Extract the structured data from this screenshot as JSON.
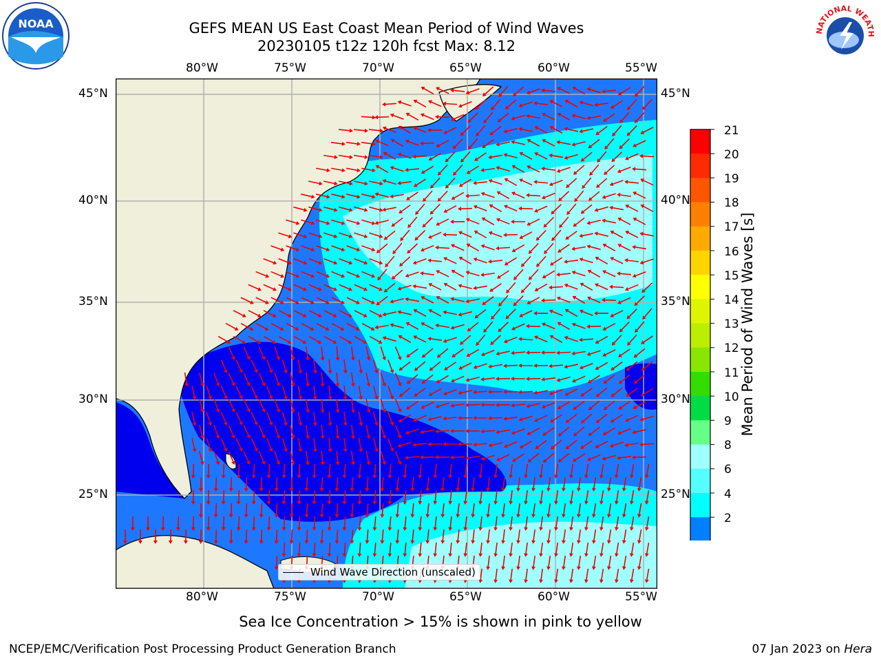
{
  "title": {
    "line1": "GEFS MEAN US East Coast Mean Period of Wind Waves",
    "line2": "20230105 t12z 120h fcst   Max: 8.12"
  },
  "logos": {
    "left_text": "NOAA",
    "right_text": "NATIONAL WEATHER SERVICE"
  },
  "map": {
    "lon_labels": [
      "80°W",
      "75°W",
      "70°W",
      "65°W",
      "60°W",
      "55°W"
    ],
    "lat_labels": [
      "45°N",
      "40°N",
      "35°N",
      "30°N",
      "25°N"
    ],
    "legend_label": "Wind Wave Direction (unscaled)",
    "colors": {
      "land": "#efefdb",
      "water_deep_blue": "#0000ee",
      "blue": "#1e78ff",
      "cyan": "#00ffff",
      "light_cyan": "#a0ffff",
      "arrow": "#ee0000",
      "grid": "#b0b0b0"
    }
  },
  "colorbar": {
    "label": "Mean Period of Wind Waves [s]",
    "ticks": [
      "21",
      "20",
      "19",
      "18",
      "17",
      "16",
      "15",
      "14",
      "13",
      "12",
      "11",
      "10",
      "9",
      "8",
      "6",
      "4",
      "2"
    ],
    "colors": [
      "#ff0000",
      "#ff2a00",
      "#ff5500",
      "#ff8000",
      "#ffaa00",
      "#ffd400",
      "#ffff00",
      "#ddf500",
      "#bbee00",
      "#88e600",
      "#33dd00",
      "#00dd44",
      "#66ff88",
      "#a0ffff",
      "#55ffff",
      "#00ffff",
      "#0080ff",
      "#0000ee"
    ]
  },
  "footer": {
    "sea_ice_note": "Sea Ice Concentration > 15% is shown in pink to yellow",
    "credit_left": "NCEP/EMC/Verification Post Processing Product Generation Branch",
    "credit_date": "07 Jan 2023 on",
    "credit_machine": "Hera"
  }
}
